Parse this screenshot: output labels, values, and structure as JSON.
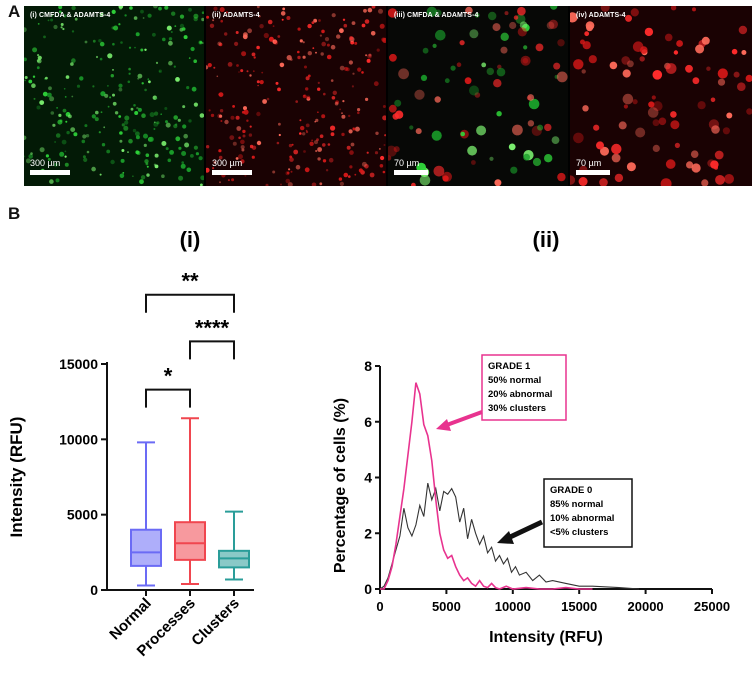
{
  "panel_letters": [
    "A",
    "B"
  ],
  "panels": [
    {
      "label": "(i) CMFDA & ADAMTS-4",
      "scale": "300 µm",
      "channel": "green"
    },
    {
      "label": "(ii) ADAMTS-4",
      "scale": "300 µm",
      "channel": "red"
    },
    {
      "label": "(iii) CMFDA & ADAMTS-4",
      "scale": "70 µm",
      "channel": "mixed"
    },
    {
      "label": "(iv) ADAMTS-4",
      "scale": "70 µm",
      "channel": "red"
    }
  ],
  "chart_data": [
    {
      "type": "box",
      "title": "(i)",
      "ylabel": "Intensity (RFU)",
      "ylim": [
        0,
        15000
      ],
      "yticks": [
        "0",
        "5000",
        "10000",
        "15000"
      ],
      "categories": [
        "Normal",
        "Processes",
        "Clusters"
      ],
      "colors": [
        "#6b6bf5",
        "#f0464f",
        "#2a9d99"
      ],
      "boxes": [
        {
          "min": 300,
          "q1": 1600,
          "median": 2500,
          "q3": 4000,
          "max": 9800
        },
        {
          "min": 400,
          "q1": 2000,
          "median": 3100,
          "q3": 4500,
          "max": 11400
        },
        {
          "min": 700,
          "q1": 1500,
          "median": 2100,
          "q3": 2600,
          "max": 5200
        }
      ],
      "significance": [
        {
          "from": 0,
          "to": 1,
          "label": "*",
          "y": 13300
        },
        {
          "from": 1,
          "to": 2,
          "label": "****",
          "y": 16500
        },
        {
          "from": 0,
          "to": 2,
          "label": "**",
          "y": 19600
        }
      ]
    },
    {
      "type": "line",
      "title": "(ii)",
      "xlabel": "Intensity (RFU)",
      "ylabel": "Percentage of cells (%)",
      "xlim": [
        0,
        25000
      ],
      "ylim": [
        0,
        8
      ],
      "xticks": [
        "0",
        "5000",
        "10000",
        "15000",
        "20000",
        "25000"
      ],
      "yticks": [
        "0",
        "2",
        "4",
        "6",
        "8"
      ],
      "series": [
        {
          "color": "#e8338f",
          "x": [
            0,
            300,
            600,
            900,
            1200,
            1500,
            1800,
            2100,
            2400,
            2700,
            3000,
            3300,
            3600,
            3900,
            4200,
            4500,
            4800,
            5100,
            5400,
            5700,
            6000,
            6300,
            6600,
            6900,
            7200,
            7500,
            7800,
            8100,
            8400,
            8700,
            9000,
            9500,
            10000,
            11000,
            12000,
            13000,
            14000,
            15000,
            16000
          ],
          "y": [
            0,
            0,
            0.3,
            0.8,
            1.6,
            2.6,
            3.6,
            4.8,
            6.0,
            7.4,
            7.0,
            5.9,
            5.5,
            4.6,
            3.2,
            2.0,
            1.4,
            1.1,
            1.2,
            0.8,
            0.5,
            0.3,
            0.4,
            0.2,
            0.1,
            0.3,
            0.1,
            0.05,
            0.2,
            0.05,
            0,
            0.1,
            0,
            0.05,
            0,
            0,
            0.05,
            0,
            0
          ]
        },
        {
          "color": "#333333",
          "x": [
            0,
            300,
            600,
            900,
            1200,
            1500,
            1800,
            2100,
            2400,
            2700,
            3000,
            3300,
            3600,
            3900,
            4200,
            4500,
            4800,
            5100,
            5400,
            5700,
            6000,
            6300,
            6600,
            6900,
            7200,
            7500,
            7800,
            8100,
            8400,
            8700,
            9000,
            9300,
            9600,
            9900,
            10200,
            10500,
            11000,
            11500,
            12000,
            12500,
            13000,
            14000,
            15000,
            16000,
            18000,
            19500
          ],
          "y": [
            0,
            0.1,
            0.4,
            0.9,
            1.4,
            1.9,
            2.9,
            2.2,
            1.9,
            2.3,
            3.0,
            2.6,
            3.8,
            3.2,
            3.6,
            2.8,
            3.5,
            3.4,
            3.6,
            3.3,
            2.4,
            2.9,
            1.8,
            2.5,
            2.0,
            1.6,
            1.9,
            1.3,
            1.5,
            1.0,
            1.2,
            0.9,
            1.1,
            0.6,
            0.8,
            0.5,
            0.6,
            0.3,
            0.5,
            0.25,
            0.3,
            0.2,
            0.1,
            0.1,
            0.05,
            0
          ]
        }
      ],
      "annotations": [
        {
          "lines": [
            "GRADE 1",
            "50% normal",
            "20% abnormal",
            "30% clusters"
          ],
          "border": "#e8338f"
        },
        {
          "lines": [
            "GRADE 0",
            "85% normal",
            "10% abnormal",
            "<5% clusters"
          ],
          "border": "#111111"
        }
      ]
    }
  ]
}
